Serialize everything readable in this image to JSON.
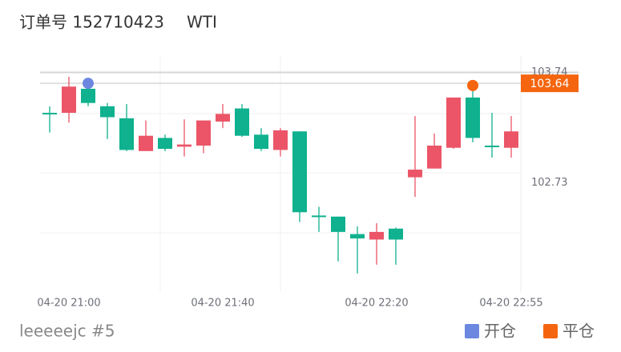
{
  "chart_data": {
    "type": "candlestick",
    "title": "订单号 152710423",
    "subtitle": "WTI",
    "categories": [
      null,
      "04-20 21:00",
      null,
      null,
      null,
      null,
      null,
      null,
      null,
      "04-20 21:40",
      null,
      null,
      null,
      null,
      null,
      null,
      null,
      "04-20 22:20",
      null,
      null,
      null,
      null,
      null,
      null,
      "04-20 22:55"
    ],
    "open": [
      103.37,
      103.37,
      103.59,
      103.43,
      103.32,
      103.02,
      103.14,
      103.06,
      103.07,
      103.29,
      103.41,
      103.17,
      103.03,
      103.2,
      102.43,
      102.42,
      102.26,
      102.21,
      102.31,
      102.78,
      102.86,
      103.05,
      103.51,
      103.07,
      103.05
    ],
    "high": [
      103.43,
      103.7,
      103.63,
      103.46,
      103.45,
      103.3,
      103.17,
      103.31,
      103.3,
      103.45,
      103.45,
      103.23,
      103.23,
      103.2,
      102.51,
      102.42,
      102.33,
      102.36,
      102.32,
      103.34,
      103.18,
      103.51,
      103.58,
      103.37,
      103.34
    ],
    "low": [
      103.19,
      103.28,
      103.43,
      103.13,
      103.02,
      103.02,
      103.02,
      102.97,
      103.0,
      103.23,
      103.15,
      103.02,
      102.97,
      102.37,
      102.28,
      102.01,
      101.9,
      101.98,
      101.98,
      102.6,
      102.86,
      103.04,
      103.1,
      102.96,
      102.96
    ],
    "close": [
      103.36,
      103.61,
      103.46,
      103.33,
      103.03,
      103.16,
      103.04,
      103.08,
      103.3,
      103.36,
      103.16,
      103.04,
      103.21,
      102.46,
      102.42,
      102.28,
      102.22,
      102.28,
      102.21,
      102.85,
      103.07,
      103.51,
      103.14,
      103.06,
      103.2
    ],
    "up_color": "#eb5567",
    "down_color": "#0fb18e",
    "series": [
      {
        "name": "开仓",
        "color": "#6b87e0",
        "values": [
          null,
          null,
          103.64,
          null,
          null,
          null,
          null,
          null,
          null,
          null,
          null,
          null,
          null,
          null,
          null,
          null,
          null,
          null,
          null,
          null,
          null,
          null,
          null,
          null,
          null
        ]
      },
      {
        "name": "平仓",
        "color": "#f5650f",
        "values": [
          null,
          null,
          null,
          null,
          null,
          null,
          null,
          null,
          null,
          null,
          null,
          null,
          null,
          null,
          null,
          null,
          null,
          null,
          null,
          null,
          null,
          null,
          103.62,
          null,
          null
        ]
      }
    ],
    "price_line": {
      "value": 103.64,
      "color": "#f5650f"
    },
    "ylim": [
      101.73,
      103.89
    ],
    "yticks": [
      103.74,
      102.73
    ],
    "legend": "bottom-right"
  },
  "footer": "leeeeejc #5"
}
